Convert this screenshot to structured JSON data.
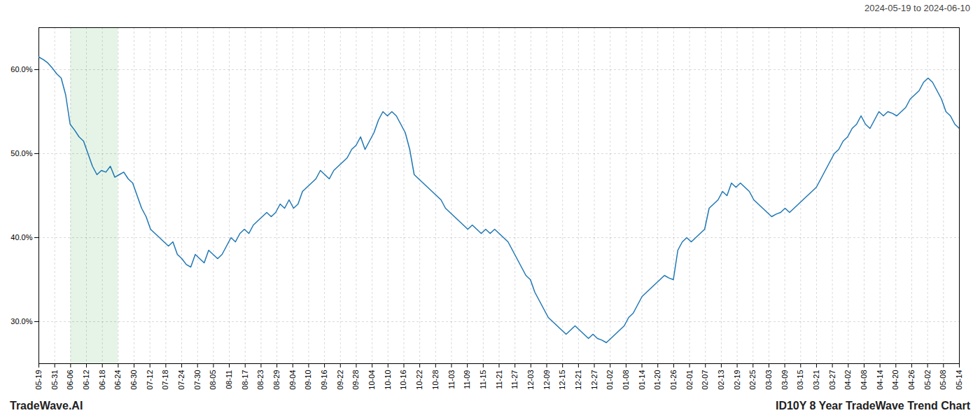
{
  "chart_data": {
    "type": "line",
    "title": "ID10Y 8 Year TradeWave Trend Chart",
    "subtitle": "2024-05-19 to 2024-06-10",
    "annotations": [
      "TradeWave.AI"
    ],
    "color": "#1f77b4",
    "grid": true,
    "xlim": [
      0,
      206
    ],
    "xticks": [
      {
        "value": 0,
        "label": "05-19"
      },
      {
        "value": 3.5517241379,
        "label": "05-31"
      },
      {
        "value": 7.1034482759,
        "label": "06-06"
      },
      {
        "value": 10.6551724138,
        "label": "06-12"
      },
      {
        "value": 14.2068965517,
        "label": "06-18"
      },
      {
        "value": 17.7586206897,
        "label": "06-24"
      },
      {
        "value": 21.3103448276,
        "label": "06-30"
      },
      {
        "value": 24.8620689655,
        "label": "07-12"
      },
      {
        "value": 28.4137931034,
        "label": "07-18"
      },
      {
        "value": 31.9655172414,
        "label": "07-24"
      },
      {
        "value": 35.5172413793,
        "label": "07-30"
      },
      {
        "value": 39.0689655172,
        "label": "08-05"
      },
      {
        "value": 42.6206896552,
        "label": "08-11"
      },
      {
        "value": 46.1724137931,
        "label": "08-17"
      },
      {
        "value": 49.724137931,
        "label": "08-23"
      },
      {
        "value": 53.275862069,
        "label": "08-29"
      },
      {
        "value": 56.8275862069,
        "label": "09-04"
      },
      {
        "value": 60.3793103448,
        "label": "09-10"
      },
      {
        "value": 63.9310344828,
        "label": "09-16"
      },
      {
        "value": 67.4827586207,
        "label": "09-22"
      },
      {
        "value": 71.0344827586,
        "label": "09-28"
      },
      {
        "value": 74.5862068966,
        "label": "10-04"
      },
      {
        "value": 78.1379310345,
        "label": "10-10"
      },
      {
        "value": 81.6896551724,
        "label": "10-16"
      },
      {
        "value": 85.2413793103,
        "label": "10-22"
      },
      {
        "value": 88.7931034483,
        "label": "10-28"
      },
      {
        "value": 92.3448275862,
        "label": "11-03"
      },
      {
        "value": 95.8965517241,
        "label": "11-09"
      },
      {
        "value": 99.4482758621,
        "label": "11-15"
      },
      {
        "value": 103,
        "label": "11-21"
      },
      {
        "value": 106.5517241379,
        "label": "11-27"
      },
      {
        "value": 110.1034482759,
        "label": "12-03"
      },
      {
        "value": 113.6551724138,
        "label": "12-09"
      },
      {
        "value": 117.2068965517,
        "label": "12-15"
      },
      {
        "value": 120.7586206897,
        "label": "12-21"
      },
      {
        "value": 124.3103448276,
        "label": "12-27"
      },
      {
        "value": 127.8620689655,
        "label": "01-02"
      },
      {
        "value": 131.4137931034,
        "label": "01-08"
      },
      {
        "value": 134.9655172414,
        "label": "01-14"
      },
      {
        "value": 138.5172413793,
        "label": "01-20"
      },
      {
        "value": 142.0689655172,
        "label": "01-26"
      },
      {
        "value": 145.6206896552,
        "label": "02-01"
      },
      {
        "value": 149.1724137931,
        "label": "02-07"
      },
      {
        "value": 152.724137931,
        "label": "02-13"
      },
      {
        "value": 156.275862069,
        "label": "02-19"
      },
      {
        "value": 159.8275862069,
        "label": "02-25"
      },
      {
        "value": 163.3793103448,
        "label": "03-03"
      },
      {
        "value": 166.9310344828,
        "label": "03-09"
      },
      {
        "value": 170.4827586207,
        "label": "03-15"
      },
      {
        "value": 174.0344827586,
        "label": "03-21"
      },
      {
        "value": 177.5862068966,
        "label": "03-27"
      },
      {
        "value": 181.1379310345,
        "label": "04-02"
      },
      {
        "value": 184.6896551724,
        "label": "04-08"
      },
      {
        "value": 188.2413793103,
        "label": "04-14"
      },
      {
        "value": 191.7931034483,
        "label": "04-20"
      },
      {
        "value": 195.3448275862,
        "label": "04-26"
      },
      {
        "value": 198.8965517241,
        "label": "05-02"
      },
      {
        "value": 202.4482758621,
        "label": "05-08"
      },
      {
        "value": 206,
        "label": "05-14"
      }
    ],
    "ylim": [
      25.0,
      65.0
    ],
    "yticks": [
      {
        "value": 30.0,
        "label": "30.0%"
      },
      {
        "value": 40.0,
        "label": "40.0%"
      },
      {
        "value": 50.0,
        "label": "50.0%"
      },
      {
        "value": 60.0,
        "label": "60.0%"
      }
    ],
    "highlight": {
      "range": [
        7.1034482759,
        17.7586206897
      ],
      "color": "#c8e6c9"
    },
    "values": [
      61.5,
      61.2,
      60.8,
      60.2,
      59.5,
      59.0,
      57.0,
      53.5,
      52.8,
      52.0,
      51.5,
      50.0,
      48.5,
      47.5,
      48.0,
      47.8,
      48.5,
      47.2,
      47.5,
      47.8,
      47.0,
      46.5,
      45.0,
      43.5,
      42.5,
      41.0,
      40.5,
      40.0,
      39.5,
      39.0,
      39.5,
      38.0,
      37.5,
      36.8,
      36.5,
      38.0,
      37.5,
      37.0,
      38.5,
      38.0,
      37.5,
      38.0,
      39.0,
      40.0,
      39.5,
      40.5,
      41.0,
      40.5,
      41.5,
      42.0,
      42.5,
      43.0,
      42.5,
      43.0,
      44.0,
      43.5,
      44.5,
      43.5,
      44.0,
      45.5,
      46.0,
      46.5,
      47.0,
      48.0,
      47.5,
      47.0,
      48.0,
      48.5,
      49.0,
      49.5,
      50.5,
      51.0,
      52.0,
      50.5,
      51.5,
      52.5,
      54.0,
      55.0,
      54.5,
      55.0,
      54.5,
      53.5,
      52.5,
      50.5,
      47.5,
      47.0,
      46.5,
      46.0,
      45.5,
      45.0,
      44.5,
      43.5,
      43.0,
      42.5,
      42.0,
      41.5,
      41.0,
      41.5,
      41.0,
      40.5,
      41.0,
      40.5,
      41.0,
      40.5,
      40.0,
      39.5,
      38.5,
      37.5,
      36.5,
      35.5,
      35.0,
      33.5,
      32.5,
      31.5,
      30.5,
      30.0,
      29.5,
      29.0,
      28.5,
      29.0,
      29.5,
      29.0,
      28.5,
      28.0,
      28.5,
      28.0,
      27.8,
      27.5,
      28.0,
      28.5,
      29.0,
      29.5,
      30.5,
      31.0,
      32.0,
      33.0,
      33.5,
      34.0,
      34.5,
      35.0,
      35.5,
      35.2,
      35.0,
      38.5,
      39.5,
      40.0,
      39.5,
      40.0,
      40.5,
      41.0,
      43.5,
      44.0,
      44.5,
      45.5,
      45.0,
      46.5,
      46.0,
      46.5,
      46.0,
      45.5,
      44.5,
      44.0,
      43.5,
      43.0,
      42.5,
      42.8,
      43.0,
      43.5,
      43.0,
      43.5,
      44.0,
      44.5,
      45.0,
      45.5,
      46.0,
      47.0,
      48.0,
      49.0,
      50.0,
      50.5,
      51.5,
      52.0,
      53.0,
      53.5,
      54.5,
      53.5,
      53.0,
      54.0,
      55.0,
      54.5,
      55.0,
      54.8,
      54.5,
      55.0,
      55.5,
      56.5,
      57.0,
      57.5,
      58.5,
      59.0,
      58.5,
      57.5,
      56.5,
      55.0,
      54.5,
      53.5,
      53.0
    ]
  }
}
